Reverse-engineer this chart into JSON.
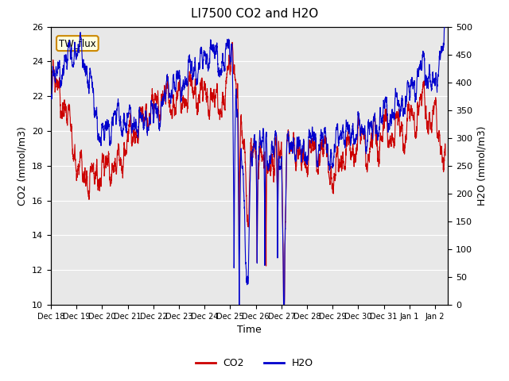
{
  "title": "LI7500 CO2 and H2O",
  "xlabel": "Time",
  "ylabel_left": "CO2 (mmol/m3)",
  "ylabel_right": "H2O (mmol/m3)",
  "annotation": "TW_flux",
  "co2_ylim": [
    10,
    26
  ],
  "h2o_ylim": [
    0,
    500
  ],
  "co2_yticks": [
    10,
    12,
    14,
    16,
    18,
    20,
    22,
    24,
    26
  ],
  "h2o_yticks": [
    0,
    50,
    100,
    150,
    200,
    250,
    300,
    350,
    400,
    450,
    500
  ],
  "co2_color": "#cc0000",
  "h2o_color": "#0000cc",
  "bg_color": "#e8e8e8",
  "fig_bg": "#ffffff",
  "grid_color": "#ffffff",
  "legend_co2": "CO2",
  "legend_h2o": "H2O",
  "x_tick_labels": [
    "Dec 18",
    "Dec 19",
    "Dec 20",
    "Dec 21",
    "Dec 22",
    "Dec 23",
    "Dec 24",
    "Dec 25",
    "Dec 26",
    "Dec 27",
    "Dec 28",
    "Dec 29",
    "Dec 30",
    "Dec 31",
    "Jan 1",
    "Jan 2"
  ],
  "x_tick_positions": [
    18,
    19,
    20,
    21,
    22,
    23,
    24,
    25,
    26,
    27,
    28,
    29,
    30,
    31,
    32,
    33
  ]
}
